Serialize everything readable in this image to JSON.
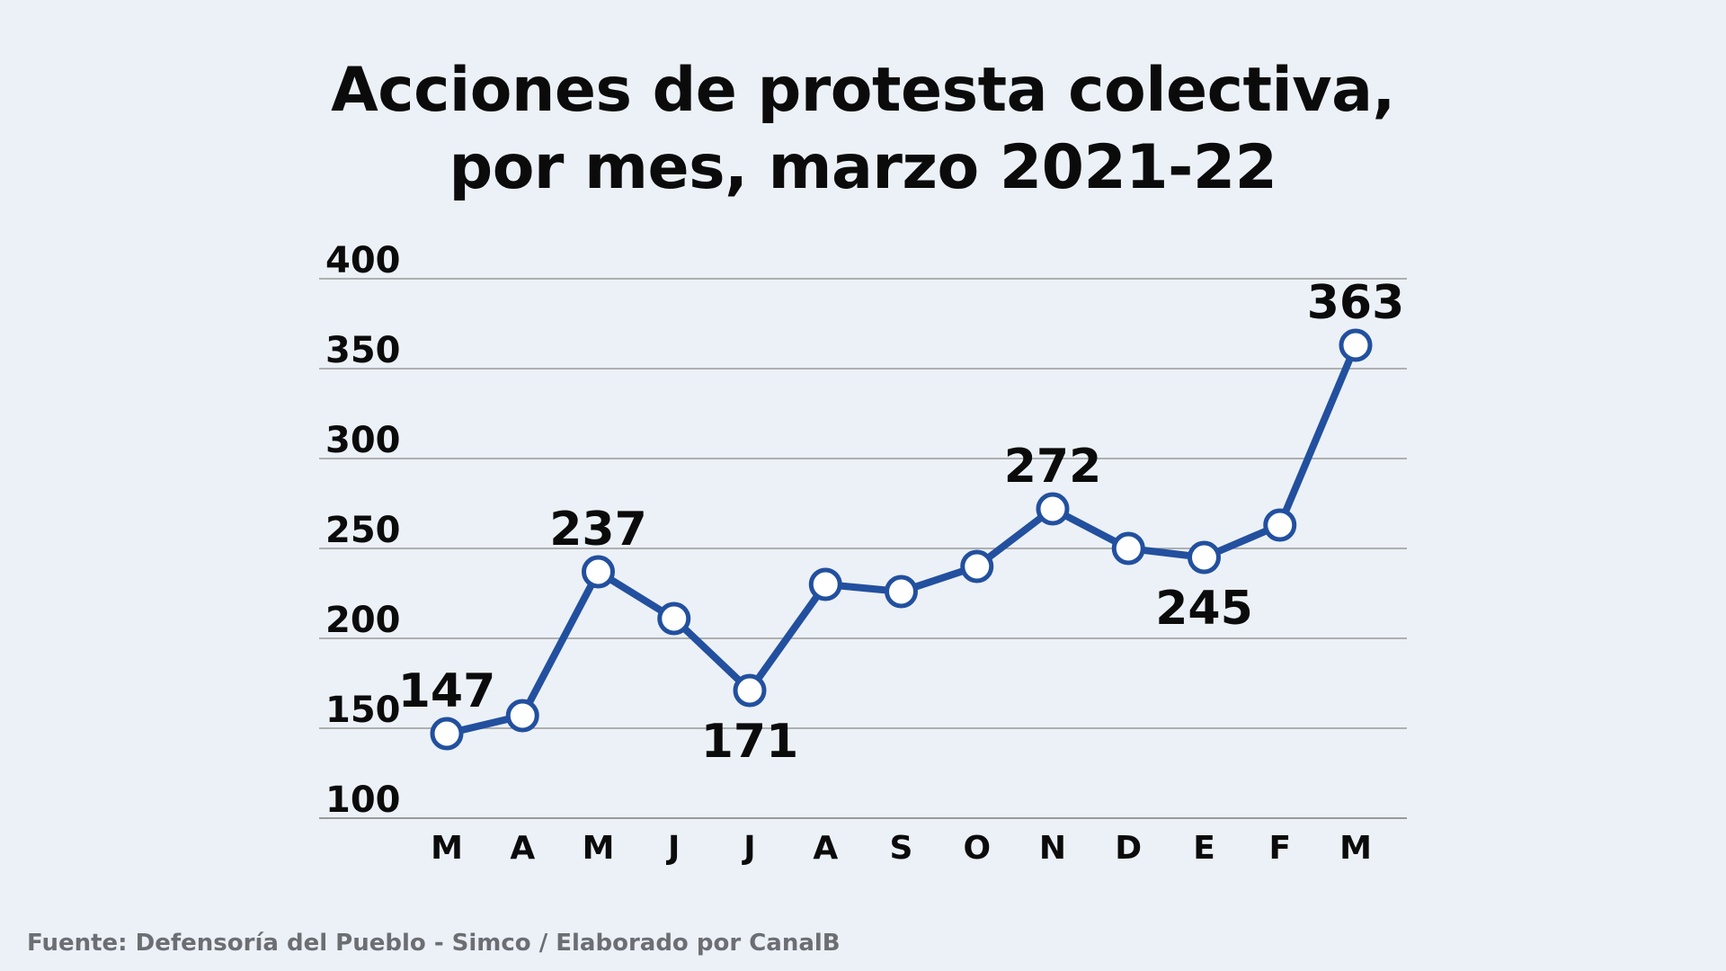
{
  "title_lines": [
    "Acciones de protesta colectiva,",
    "por mes, marzo 2021-22"
  ],
  "source": "Fuente: Defensoría del Pueblo - Simco / Elaborado por CanalB",
  "colors": {
    "line": "#22509f",
    "marker_fill": "#ffffff",
    "grid": "#9a9a9a",
    "text": "#0b0b0b",
    "background": "#ecf1f7"
  },
  "chart_data": {
    "type": "line",
    "title": "Acciones de protesta colectiva, por mes, marzo 2021-22",
    "categories": [
      "M",
      "A",
      "M",
      "J",
      "J",
      "A",
      "S",
      "O",
      "N",
      "D",
      "E",
      "F",
      "M"
    ],
    "series": [
      {
        "values": [
          147,
          157,
          237,
          211,
          171,
          230,
          226,
          240,
          272,
          250,
          245,
          263,
          363
        ]
      }
    ],
    "data_labels": [
      {
        "index": 0,
        "text": "147"
      },
      {
        "index": 2,
        "text": "237"
      },
      {
        "index": 4,
        "text": "171"
      },
      {
        "index": 8,
        "text": "272"
      },
      {
        "index": 10,
        "text": "245"
      },
      {
        "index": 12,
        "text": "363"
      }
    ],
    "y_ticks": [
      "100",
      "150",
      "200",
      "250",
      "300",
      "350",
      "400"
    ],
    "ylim": [
      100,
      400
    ],
    "grid": true,
    "legend": "none"
  }
}
